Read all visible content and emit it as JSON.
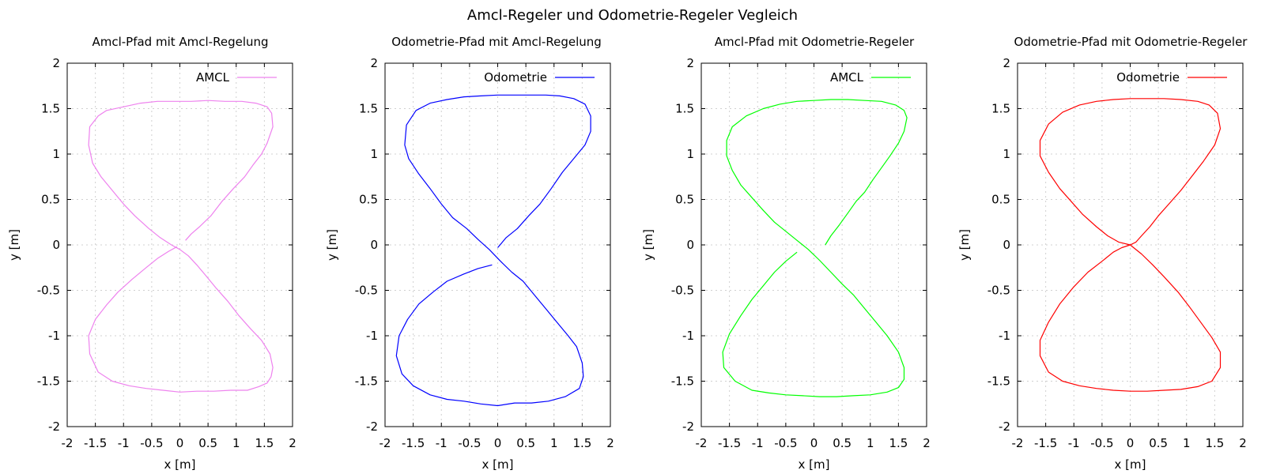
{
  "figure_title": "Amcl-Regeler und Odometrie-Regeler Vegleich",
  "chart_data": [
    {
      "type": "line",
      "title": "Amcl-Pfad mit Amcl-Regelung",
      "xlabel": "x [m]",
      "ylabel": "y [m]",
      "xlim": [
        -2,
        2
      ],
      "ylim": [
        -2,
        2
      ],
      "xticks": [
        "-2",
        "-1.5",
        "-1",
        "-0.5",
        "0",
        "0.5",
        "1",
        "1.5",
        "2"
      ],
      "yticks": [
        "-2",
        "-1.5",
        "-1",
        "-0.5",
        "0",
        "0.5",
        "1",
        "1.5",
        "2"
      ],
      "grid": true,
      "legend_position": "top-right",
      "series": [
        {
          "name": "AMCL",
          "color": "#ee82ee",
          "x": [
            0.1,
            0.2,
            0.35,
            0.55,
            0.75,
            0.95,
            1.15,
            1.3,
            1.45,
            1.55,
            1.65,
            1.63,
            1.55,
            1.35,
            1.1,
            0.8,
            0.5,
            0.2,
            -0.1,
            -0.4,
            -0.7,
            -1.0,
            -1.3,
            -1.45,
            -1.6,
            -1.62,
            -1.55,
            -1.4,
            -1.2,
            -1.0,
            -0.8,
            -0.55,
            -0.35,
            -0.15,
            0.0,
            0.15,
            0.3,
            0.45,
            0.65,
            0.85,
            1.05,
            1.25,
            1.45,
            1.6,
            1.65,
            1.62,
            1.55,
            1.4,
            1.2,
            0.9,
            0.6,
            0.3,
            0.0,
            -0.3,
            -0.6,
            -0.9,
            -1.2,
            -1.45,
            -1.6,
            -1.62,
            -1.5,
            -1.3,
            -1.1,
            -0.85,
            -0.6,
            -0.4,
            -0.2,
            -0.05
          ],
          "y": [
            0.05,
            0.12,
            0.2,
            0.32,
            0.48,
            0.62,
            0.75,
            0.88,
            1.0,
            1.12,
            1.3,
            1.45,
            1.52,
            1.56,
            1.58,
            1.58,
            1.59,
            1.58,
            1.58,
            1.58,
            1.56,
            1.52,
            1.48,
            1.42,
            1.3,
            1.1,
            0.9,
            0.75,
            0.6,
            0.45,
            0.32,
            0.18,
            0.08,
            0.0,
            -0.05,
            -0.12,
            -0.22,
            -0.33,
            -0.48,
            -0.62,
            -0.78,
            -0.92,
            -1.05,
            -1.2,
            -1.35,
            -1.45,
            -1.52,
            -1.56,
            -1.6,
            -1.6,
            -1.61,
            -1.61,
            -1.62,
            -1.6,
            -1.58,
            -1.55,
            -1.5,
            -1.4,
            -1.2,
            -1.0,
            -0.82,
            -0.66,
            -0.52,
            -0.38,
            -0.25,
            -0.15,
            -0.07,
            -0.02
          ]
        }
      ]
    },
    {
      "type": "line",
      "title": "Odometrie-Pfad mit Amcl-Regelung",
      "xlabel": "x [m]",
      "ylabel": "y [m]",
      "xlim": [
        -2,
        2
      ],
      "ylim": [
        -2,
        2
      ],
      "xticks": [
        "-2",
        "-1.5",
        "-1",
        "-0.5",
        "0",
        "0.5",
        "1",
        "1.5",
        "2"
      ],
      "yticks": [
        "-2",
        "-1.5",
        "-1",
        "-0.5",
        "0",
        "0.5",
        "1",
        "1.5",
        "2"
      ],
      "grid": true,
      "legend_position": "top-right",
      "series": [
        {
          "name": "Odometrie",
          "color": "#0000ff",
          "x": [
            0.0,
            0.15,
            0.35,
            0.55,
            0.75,
            0.95,
            1.15,
            1.35,
            1.55,
            1.65,
            1.65,
            1.55,
            1.35,
            1.1,
            0.85,
            0.6,
            0.3,
            0.0,
            -0.3,
            -0.6,
            -0.9,
            -1.2,
            -1.45,
            -1.62,
            -1.65,
            -1.58,
            -1.4,
            -1.2,
            -1.0,
            -0.8,
            -0.55,
            -0.35,
            -0.15,
            0.05,
            0.25,
            0.45,
            0.65,
            0.85,
            1.05,
            1.25,
            1.4,
            1.5,
            1.52,
            1.45,
            1.2,
            0.9,
            0.6,
            0.3,
            0.0,
            -0.3,
            -0.6,
            -0.9,
            -1.2,
            -1.5,
            -1.7,
            -1.8,
            -1.75,
            -1.6,
            -1.4,
            -1.15,
            -0.9,
            -0.6,
            -0.35,
            -0.1
          ],
          "y": [
            -0.03,
            0.08,
            0.18,
            0.32,
            0.45,
            0.62,
            0.8,
            0.95,
            1.1,
            1.25,
            1.42,
            1.55,
            1.61,
            1.64,
            1.65,
            1.65,
            1.65,
            1.65,
            1.64,
            1.63,
            1.6,
            1.56,
            1.48,
            1.32,
            1.1,
            0.95,
            0.78,
            0.62,
            0.45,
            0.3,
            0.18,
            0.06,
            -0.05,
            -0.18,
            -0.3,
            -0.4,
            -0.55,
            -0.7,
            -0.85,
            -1.0,
            -1.12,
            -1.3,
            -1.45,
            -1.58,
            -1.67,
            -1.72,
            -1.74,
            -1.74,
            -1.77,
            -1.75,
            -1.72,
            -1.7,
            -1.65,
            -1.55,
            -1.42,
            -1.22,
            -1.0,
            -0.82,
            -0.65,
            -0.52,
            -0.4,
            -0.32,
            -0.26,
            -0.22
          ]
        }
      ]
    },
    {
      "type": "line",
      "title": "Amcl-Pfad mit Odometrie-Regeler",
      "xlabel": "x [m]",
      "ylabel": "y [m]",
      "xlim": [
        -2,
        2
      ],
      "ylim": [
        -2,
        2
      ],
      "xticks": [
        "-2",
        "-1.5",
        "-1",
        "-0.5",
        "0",
        "0.5",
        "1",
        "1.5",
        "2"
      ],
      "yticks": [
        "-2",
        "-1.5",
        "-1",
        "-0.5",
        "0",
        "0.5",
        "1",
        "1.5",
        "2"
      ],
      "grid": true,
      "legend_position": "top-right",
      "series": [
        {
          "name": "AMCL",
          "color": "#00ff00",
          "x": [
            0.2,
            0.3,
            0.45,
            0.6,
            0.75,
            0.9,
            1.05,
            1.2,
            1.35,
            1.5,
            1.6,
            1.65,
            1.6,
            1.45,
            1.2,
            0.9,
            0.6,
            0.3,
            0.0,
            -0.3,
            -0.6,
            -0.9,
            -1.2,
            -1.45,
            -1.55,
            -1.55,
            -1.45,
            -1.3,
            -1.1,
            -0.9,
            -0.7,
            -0.5,
            -0.3,
            -0.1,
            0.1,
            0.3,
            0.5,
            0.7,
            0.9,
            1.1,
            1.3,
            1.5,
            1.6,
            1.6,
            1.5,
            1.3,
            1.0,
            0.7,
            0.4,
            0.1,
            -0.2,
            -0.5,
            -0.8,
            -1.1,
            -1.4,
            -1.6,
            -1.62,
            -1.5,
            -1.3,
            -1.1,
            -0.9,
            -0.7,
            -0.5,
            -0.3
          ],
          "y": [
            0.0,
            0.1,
            0.22,
            0.35,
            0.48,
            0.58,
            0.72,
            0.85,
            0.98,
            1.12,
            1.25,
            1.4,
            1.48,
            1.54,
            1.58,
            1.59,
            1.6,
            1.6,
            1.59,
            1.58,
            1.55,
            1.5,
            1.42,
            1.3,
            1.15,
            0.98,
            0.82,
            0.66,
            0.52,
            0.38,
            0.25,
            0.15,
            0.05,
            -0.05,
            -0.17,
            -0.3,
            -0.43,
            -0.55,
            -0.7,
            -0.85,
            -1.0,
            -1.18,
            -1.35,
            -1.48,
            -1.57,
            -1.62,
            -1.65,
            -1.66,
            -1.67,
            -1.67,
            -1.66,
            -1.65,
            -1.63,
            -1.6,
            -1.5,
            -1.35,
            -1.18,
            -0.98,
            -0.78,
            -0.6,
            -0.45,
            -0.3,
            -0.18,
            -0.08
          ]
        }
      ]
    },
    {
      "type": "line",
      "title": "Odometrie-Pfad mit Odometrie-Regeler",
      "xlabel": "x [m]",
      "ylabel": "y [m]",
      "xlim": [
        -2,
        2
      ],
      "ylim": [
        -2,
        2
      ],
      "xticks": [
        "-2",
        "-1.5",
        "-1",
        "-0.5",
        "0",
        "0.5",
        "1",
        "1.5",
        "2"
      ],
      "yticks": [
        "-2",
        "-1.5",
        "-1",
        "-0.5",
        "0",
        "0.5",
        "1",
        "1.5",
        "2"
      ],
      "grid": true,
      "legend_position": "top-right",
      "series": [
        {
          "name": "Odometrie",
          "color": "#ff0000",
          "x": [
            0.0,
            0.1,
            0.2,
            0.35,
            0.5,
            0.7,
            0.9,
            1.1,
            1.3,
            1.5,
            1.6,
            1.55,
            1.4,
            1.2,
            0.9,
            0.6,
            0.3,
            0.0,
            -0.3,
            -0.6,
            -0.9,
            -1.2,
            -1.45,
            -1.6,
            -1.6,
            -1.45,
            -1.25,
            -1.05,
            -0.85,
            -0.6,
            -0.4,
            -0.2,
            0.0,
            0.2,
            0.4,
            0.6,
            0.85,
            1.05,
            1.25,
            1.45,
            1.6,
            1.6,
            1.45,
            1.2,
            0.9,
            0.6,
            0.3,
            0.0,
            -0.3,
            -0.6,
            -0.9,
            -1.2,
            -1.45,
            -1.6,
            -1.6,
            -1.45,
            -1.25,
            -1.0,
            -0.75,
            -0.5,
            -0.3,
            -0.15,
            0.0
          ],
          "y": [
            0.0,
            0.03,
            0.1,
            0.2,
            0.32,
            0.46,
            0.6,
            0.76,
            0.92,
            1.1,
            1.28,
            1.45,
            1.54,
            1.58,
            1.6,
            1.61,
            1.61,
            1.61,
            1.6,
            1.58,
            1.54,
            1.46,
            1.33,
            1.15,
            0.98,
            0.8,
            0.62,
            0.48,
            0.34,
            0.2,
            0.1,
            0.03,
            0.0,
            -0.1,
            -0.22,
            -0.35,
            -0.52,
            -0.68,
            -0.85,
            -1.02,
            -1.18,
            -1.35,
            -1.5,
            -1.56,
            -1.59,
            -1.6,
            -1.61,
            -1.61,
            -1.6,
            -1.58,
            -1.55,
            -1.5,
            -1.4,
            -1.22,
            -1.05,
            -0.85,
            -0.65,
            -0.46,
            -0.3,
            -0.18,
            -0.08,
            -0.03,
            0.0
          ]
        }
      ]
    }
  ]
}
